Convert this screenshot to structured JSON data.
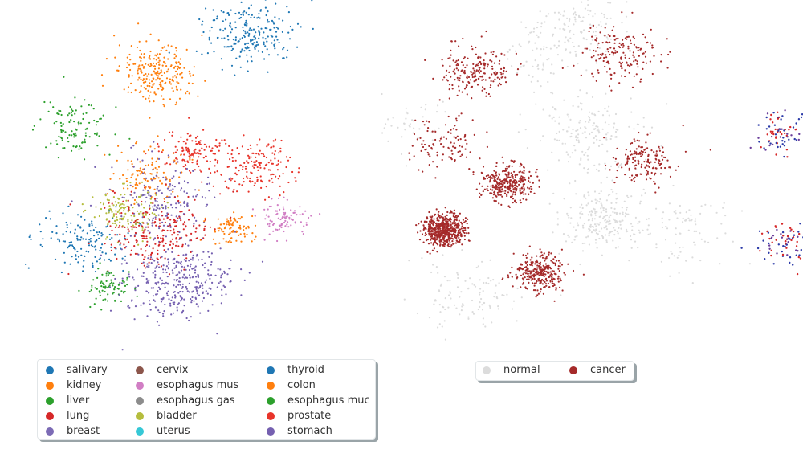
{
  "chart_data": [
    {
      "type": "scatter",
      "title": "",
      "description_of_encoding": "UMAP embedding colored by tissue",
      "legend": {
        "placement": "bottom-left",
        "entries": [
          {
            "label": "salivary",
            "color": "#1f77b4"
          },
          {
            "label": "kidney",
            "color": "#ff7f0e"
          },
          {
            "label": "liver",
            "color": "#2ca02c"
          },
          {
            "label": "lung",
            "color": "#d62728"
          },
          {
            "label": "breast",
            "color": "#7c6bb5"
          },
          {
            "label": "cervix",
            "color": "#8c564b"
          },
          {
            "label": "esophagus mus",
            "color": "#d17ec4"
          },
          {
            "label": "esophagus gas",
            "color": "#8c8c8c"
          },
          {
            "label": "bladder",
            "color": "#b5bd3d"
          },
          {
            "label": "uterus",
            "color": "#36c8d6"
          },
          {
            "label": "thyroid",
            "color": "#1f77b4"
          },
          {
            "label": "colon",
            "color": "#ff7f0e"
          },
          {
            "label": "esophagus muc",
            "color": "#2ca02c"
          },
          {
            "label": "prostate",
            "color": "#e8342a"
          },
          {
            "label": "stomach",
            "color": "#7560b0"
          }
        ]
      },
      "clusters": [
        {
          "tissue": "thyroid",
          "cx": 0.62,
          "cy": 0.92,
          "n": 230
        },
        {
          "tissue": "kidney",
          "cx": 0.35,
          "cy": 0.8,
          "n": 240
        },
        {
          "tissue": "liver",
          "cx": 0.1,
          "cy": 0.62,
          "n": 110
        },
        {
          "tissue": "prostate",
          "cx": 0.45,
          "cy": 0.55,
          "n": 120
        },
        {
          "tissue": "prostate",
          "cx": 0.63,
          "cy": 0.5,
          "n": 170
        },
        {
          "tissue": "colon",
          "cx": 0.32,
          "cy": 0.48,
          "n": 110
        },
        {
          "tissue": "stomach",
          "cx": 0.37,
          "cy": 0.4,
          "n": 180
        },
        {
          "tissue": "bladder",
          "cx": 0.25,
          "cy": 0.36,
          "n": 140
        },
        {
          "tissue": "esophagus mus",
          "cx": 0.72,
          "cy": 0.34,
          "n": 90
        },
        {
          "tissue": "colon",
          "cx": 0.57,
          "cy": 0.3,
          "n": 90
        },
        {
          "tissue": "salivary",
          "cx": 0.12,
          "cy": 0.27,
          "n": 150
        },
        {
          "tissue": "lung",
          "cx": 0.35,
          "cy": 0.29,
          "n": 230
        },
        {
          "tissue": "liver",
          "cx": 0.2,
          "cy": 0.12,
          "n": 80
        },
        {
          "tissue": "stomach",
          "cx": 0.4,
          "cy": 0.14,
          "n": 340
        }
      ]
    },
    {
      "type": "scatter",
      "title": "",
      "description_of_encoding": "UMAP embedding colored by sample status",
      "legend": {
        "placement": "bottom-center",
        "entries": [
          {
            "label": "normal",
            "color": "#dcdcdc"
          },
          {
            "label": "cancer",
            "color": "#a52a2a"
          }
        ]
      },
      "clusters": [
        {
          "status": "normal",
          "cx": 0.55,
          "cy": 0.93,
          "n": 140
        },
        {
          "status": "cancer",
          "cx": 0.7,
          "cy": 0.85,
          "n": 170
        },
        {
          "status": "cancer",
          "cx": 0.25,
          "cy": 0.8,
          "n": 200
        },
        {
          "status": "normal",
          "cx": 0.45,
          "cy": 0.83,
          "n": 40
        },
        {
          "status": "normal",
          "cx": 0.06,
          "cy": 0.65,
          "n": 40
        },
        {
          "status": "cancer",
          "cx": 0.15,
          "cy": 0.58,
          "n": 100
        },
        {
          "status": "normal",
          "cx": 0.6,
          "cy": 0.6,
          "n": 170
        },
        {
          "status": "cancer",
          "cx": 0.77,
          "cy": 0.52,
          "n": 160
        },
        {
          "status": "cancer",
          "cx": 0.35,
          "cy": 0.45,
          "n": 330
        },
        {
          "status": "cancer",
          "cx": 0.15,
          "cy": 0.3,
          "n": 580
        },
        {
          "status": "normal",
          "cx": 0.65,
          "cy": 0.33,
          "n": 230
        },
        {
          "status": "normal",
          "cx": 0.9,
          "cy": 0.3,
          "n": 90
        },
        {
          "status": "cancer",
          "cx": 0.45,
          "cy": 0.17,
          "n": 300
        },
        {
          "status": "normal",
          "cx": 0.22,
          "cy": 0.1,
          "n": 110
        }
      ]
    }
  ]
}
